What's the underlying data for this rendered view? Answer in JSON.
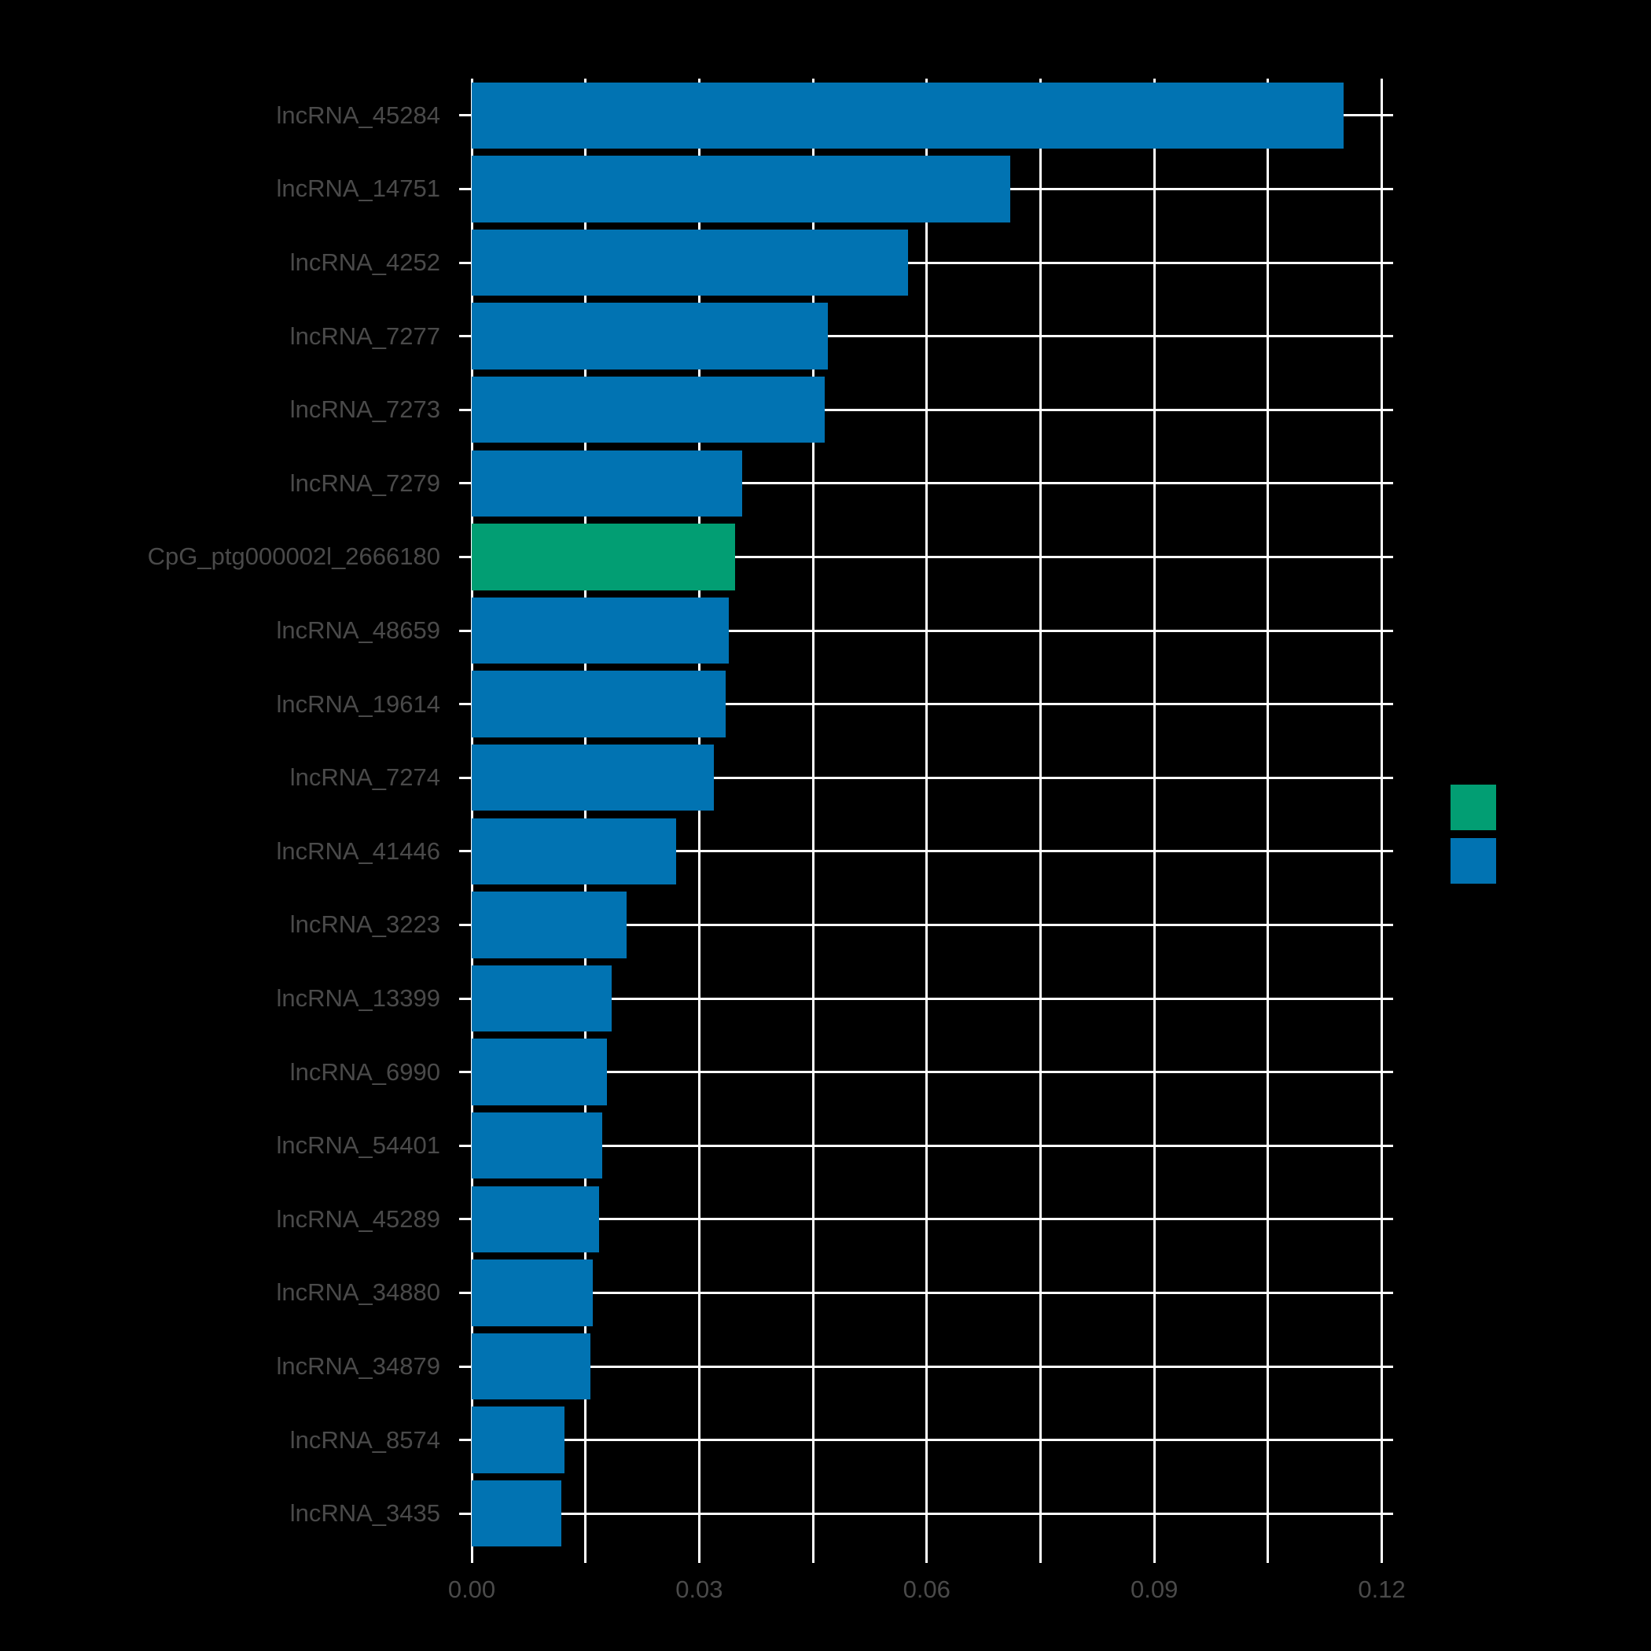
{
  "colors": {
    "background": "#000000",
    "grid": "#ffffff",
    "text": "#4a4a4a",
    "bar_blue": "#0173B2",
    "bar_green": "#029E73"
  },
  "chart_data": {
    "type": "bar",
    "orientation": "horizontal",
    "title": "",
    "xlabel": "",
    "ylabel": "",
    "grid": true,
    "legend_position": "right",
    "xlim": [
      0,
      0.1215
    ],
    "x_major_ticks": [
      0,
      0.03,
      0.06,
      0.09,
      0.12
    ],
    "x_major_tick_labels": [
      "0.00",
      "0.03",
      "0.06",
      "0.09",
      "0.12"
    ],
    "x_minor_step": 0.015,
    "categories": [
      "lncRNA_45284",
      "lncRNA_14751",
      "lncRNA_4252",
      "lncRNA_7277",
      "lncRNA_7273",
      "lncRNA_7279",
      "CpG_ptg000002l_2666180",
      "lncRNA_48659",
      "lncRNA_19614",
      "lncRNA_7274",
      "lncRNA_41446",
      "lncRNA_3223",
      "lncRNA_13399",
      "lncRNA_6990",
      "lncRNA_54401",
      "lncRNA_45289",
      "lncRNA_34880",
      "lncRNA_34879",
      "lncRNA_8574",
      "lncRNA_3435"
    ],
    "values": [
      0.115,
      0.071,
      0.0575,
      0.047,
      0.0465,
      0.0357,
      0.0347,
      0.0339,
      0.0335,
      0.0319,
      0.027,
      0.0204,
      0.0185,
      0.0178,
      0.0172,
      0.0168,
      0.016,
      0.0157,
      0.0122,
      0.0118
    ],
    "bar_colors": [
      "#0173B2",
      "#0173B2",
      "#0173B2",
      "#0173B2",
      "#0173B2",
      "#0173B2",
      "#029E73",
      "#0173B2",
      "#0173B2",
      "#0173B2",
      "#0173B2",
      "#0173B2",
      "#0173B2",
      "#0173B2",
      "#0173B2",
      "#0173B2",
      "#0173B2",
      "#0173B2",
      "#0173B2",
      "#0173B2"
    ],
    "legend": {
      "entries": [
        {
          "color": "#029E73",
          "label": ""
        },
        {
          "color": "#0173B2",
          "label": ""
        }
      ]
    }
  }
}
